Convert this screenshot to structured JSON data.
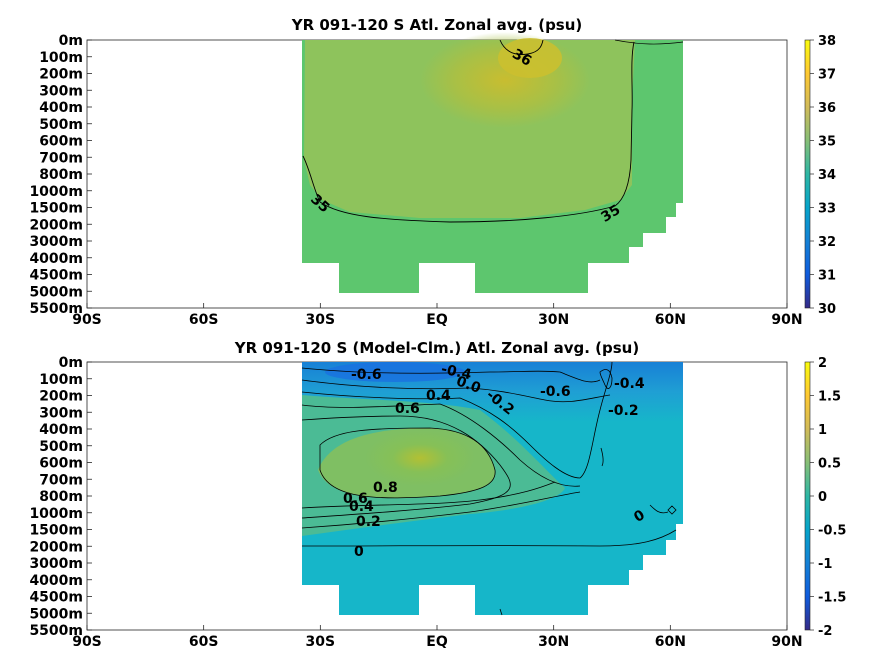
{
  "chart_data": [
    {
      "type": "heatmap",
      "title": "YR 091-120 S Atl. Zonal avg. (psu)",
      "x_ticks": [
        "90S",
        "60S",
        "30S",
        "EQ",
        "30N",
        "60N",
        "90N"
      ],
      "x_tick_values": [
        -90,
        -60,
        -30,
        0,
        30,
        60,
        90
      ],
      "xlim": [
        -90,
        90
      ],
      "y_ticks": [
        "0m",
        "100m",
        "200m",
        "300m",
        "400m",
        "500m",
        "600m",
        "700m",
        "800m",
        "1000m",
        "1500m",
        "2000m",
        "3000m",
        "4000m",
        "4500m",
        "5000m",
        "5500m"
      ],
      "y_tick_values": [
        0,
        100,
        200,
        300,
        400,
        500,
        600,
        700,
        800,
        1000,
        1500,
        2000,
        3000,
        4000,
        4500,
        5000,
        5500
      ],
      "colorbar": {
        "min": 30,
        "max": 38,
        "ticks": [
          "38",
          "37",
          "36",
          "35",
          "34",
          "33",
          "32",
          "31",
          "30"
        ]
      },
      "contour_labels": [
        "36",
        "35",
        "35"
      ],
      "grid": false,
      "description_values": {
        "domain_lat": [
          -35,
          63
        ],
        "surface_max_salinity": 37,
        "deep_salinity": 34.9
      }
    },
    {
      "type": "heatmap",
      "title": "YR 091-120 S (Model-Clm.) Atl. Zonal avg. (psu)",
      "x_ticks": [
        "90S",
        "60S",
        "30S",
        "EQ",
        "30N",
        "60N",
        "90N"
      ],
      "x_tick_values": [
        -90,
        -60,
        -30,
        0,
        30,
        60,
        90
      ],
      "xlim": [
        -90,
        90
      ],
      "y_ticks": [
        "0m",
        "100m",
        "200m",
        "300m",
        "400m",
        "500m",
        "600m",
        "700m",
        "800m",
        "1000m",
        "1500m",
        "2000m",
        "3000m",
        "4000m",
        "4500m",
        "5000m",
        "5500m"
      ],
      "y_tick_values": [
        0,
        100,
        200,
        300,
        400,
        500,
        600,
        700,
        800,
        1000,
        1500,
        2000,
        3000,
        4000,
        4500,
        5000,
        5500
      ],
      "colorbar": {
        "min": -2,
        "max": 2,
        "ticks": [
          "2",
          "1.5",
          "1",
          "0.5",
          "0",
          "-0.5",
          "-1",
          "-1.5",
          "-2"
        ]
      },
      "contour_labels": [
        "-0.6",
        "-0.4",
        "0.0",
        "-0.2",
        "-0.6",
        "-0.4",
        "-0.2",
        "0.6",
        "0.4",
        "0.8",
        "0.6",
        "0.4",
        "0.2",
        "0",
        "0"
      ],
      "grid": false,
      "description_values": {
        "max_anomaly": 0.9,
        "min_anomaly": -0.8
      }
    }
  ]
}
